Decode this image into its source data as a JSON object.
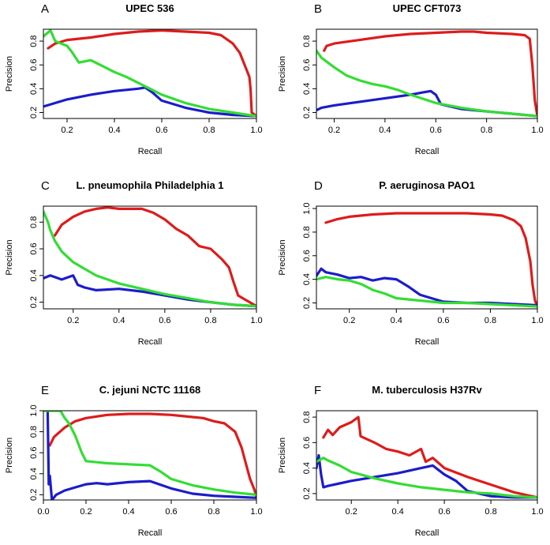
{
  "chart_data": [
    {
      "type": "line",
      "letter": "A",
      "title": "UPEC 536",
      "xlabel": "Recall",
      "ylabel": "Precision",
      "xlim": [
        0.1,
        1.0
      ],
      "ylim": [
        0.15,
        0.9
      ],
      "xticks": [
        "0.2",
        "0.4",
        "0.6",
        "0.8",
        "1.0"
      ],
      "xtick_values": [
        0.2,
        0.4,
        0.6,
        0.8,
        1.0
      ],
      "yticks": [
        "0.2",
        "0.4",
        "0.6",
        "0.8"
      ],
      "ytick_values": [
        0.2,
        0.4,
        0.6,
        0.8
      ],
      "series": [
        {
          "name": "red",
          "color": "#dd1c1c",
          "x": [
            0.12,
            0.15,
            0.2,
            0.3,
            0.4,
            0.5,
            0.6,
            0.7,
            0.8,
            0.85,
            0.9,
            0.93,
            0.95,
            0.96,
            0.97,
            0.975,
            0.98,
            1.0
          ],
          "y": [
            0.74,
            0.78,
            0.81,
            0.83,
            0.86,
            0.88,
            0.89,
            0.88,
            0.87,
            0.85,
            0.78,
            0.7,
            0.6,
            0.55,
            0.5,
            0.4,
            0.2,
            0.17
          ]
        },
        {
          "name": "blue",
          "color": "#1c1ccc",
          "x": [
            0.1,
            0.15,
            0.2,
            0.3,
            0.4,
            0.5,
            0.53,
            0.56,
            0.6,
            0.7,
            0.8,
            0.9,
            1.0
          ],
          "y": [
            0.25,
            0.28,
            0.31,
            0.35,
            0.38,
            0.4,
            0.41,
            0.37,
            0.3,
            0.24,
            0.2,
            0.18,
            0.17
          ]
        },
        {
          "name": "green",
          "color": "#33dd33",
          "x": [
            0.1,
            0.13,
            0.15,
            0.2,
            0.22,
            0.25,
            0.3,
            0.35,
            0.4,
            0.45,
            0.5,
            0.55,
            0.6,
            0.7,
            0.8,
            0.9,
            1.0
          ],
          "y": [
            0.84,
            0.89,
            0.8,
            0.76,
            0.71,
            0.62,
            0.64,
            0.59,
            0.54,
            0.5,
            0.45,
            0.4,
            0.35,
            0.28,
            0.23,
            0.2,
            0.17
          ]
        }
      ]
    },
    {
      "type": "line",
      "letter": "B",
      "title": "UPEC CFT073",
      "xlabel": "Recall",
      "ylabel": "Precision",
      "xlim": [
        0.13,
        1.0
      ],
      "ylim": [
        0.15,
        0.9
      ],
      "xticks": [
        "0.2",
        "0.4",
        "0.6",
        "0.8",
        "1.0"
      ],
      "xtick_values": [
        0.2,
        0.4,
        0.6,
        0.8,
        1.0
      ],
      "yticks": [
        "0.2",
        "0.4",
        "0.6",
        "0.8"
      ],
      "ytick_values": [
        0.2,
        0.4,
        0.6,
        0.8
      ],
      "series": [
        {
          "name": "red",
          "color": "#dd1c1c",
          "x": [
            0.16,
            0.17,
            0.2,
            0.3,
            0.4,
            0.5,
            0.6,
            0.7,
            0.75,
            0.8,
            0.9,
            0.95,
            0.97,
            0.98,
            0.99,
            1.0
          ],
          "y": [
            0.72,
            0.76,
            0.78,
            0.81,
            0.84,
            0.86,
            0.87,
            0.88,
            0.88,
            0.87,
            0.86,
            0.85,
            0.82,
            0.6,
            0.3,
            0.17
          ]
        },
        {
          "name": "blue",
          "color": "#1c1ccc",
          "x": [
            0.13,
            0.15,
            0.2,
            0.3,
            0.4,
            0.5,
            0.55,
            0.58,
            0.6,
            0.62,
            0.7,
            0.8,
            0.9,
            1.0
          ],
          "y": [
            0.22,
            0.24,
            0.26,
            0.29,
            0.32,
            0.35,
            0.37,
            0.38,
            0.35,
            0.27,
            0.23,
            0.21,
            0.19,
            0.17
          ]
        },
        {
          "name": "green",
          "color": "#33dd33",
          "x": [
            0.13,
            0.15,
            0.2,
            0.25,
            0.3,
            0.35,
            0.4,
            0.45,
            0.5,
            0.6,
            0.7,
            0.8,
            0.9,
            1.0
          ],
          "y": [
            0.72,
            0.66,
            0.58,
            0.51,
            0.47,
            0.44,
            0.42,
            0.39,
            0.35,
            0.28,
            0.24,
            0.21,
            0.19,
            0.17
          ]
        }
      ]
    },
    {
      "type": "line",
      "letter": "C",
      "title": "L. pneumophila Philadelphia 1",
      "xlabel": "Recall",
      "ylabel": "Precision",
      "xlim": [
        0.07,
        1.0
      ],
      "ylim": [
        0.15,
        0.92
      ],
      "xticks": [
        "0.2",
        "0.4",
        "0.6",
        "0.8",
        "1.0"
      ],
      "xtick_values": [
        0.2,
        0.4,
        0.6,
        0.8,
        1.0
      ],
      "yticks": [
        "0.2",
        "0.4",
        "0.6",
        "0.8"
      ],
      "ytick_values": [
        0.2,
        0.4,
        0.6,
        0.8
      ],
      "series": [
        {
          "name": "red",
          "color": "#dd1c1c",
          "x": [
            0.12,
            0.15,
            0.2,
            0.25,
            0.3,
            0.35,
            0.4,
            0.5,
            0.55,
            0.6,
            0.65,
            0.7,
            0.75,
            0.8,
            0.85,
            0.88,
            0.9,
            0.92,
            0.95,
            1.0
          ],
          "y": [
            0.7,
            0.78,
            0.84,
            0.88,
            0.9,
            0.91,
            0.9,
            0.9,
            0.87,
            0.82,
            0.75,
            0.7,
            0.62,
            0.6,
            0.52,
            0.46,
            0.35,
            0.25,
            0.22,
            0.17
          ]
        },
        {
          "name": "blue",
          "color": "#1c1ccc",
          "x": [
            0.07,
            0.1,
            0.15,
            0.2,
            0.22,
            0.25,
            0.3,
            0.4,
            0.5,
            0.6,
            0.7,
            0.8,
            0.9,
            1.0
          ],
          "y": [
            0.38,
            0.4,
            0.37,
            0.4,
            0.33,
            0.31,
            0.29,
            0.3,
            0.28,
            0.25,
            0.22,
            0.2,
            0.18,
            0.17
          ]
        },
        {
          "name": "green",
          "color": "#33dd33",
          "x": [
            0.07,
            0.09,
            0.1,
            0.12,
            0.15,
            0.2,
            0.25,
            0.3,
            0.4,
            0.5,
            0.6,
            0.7,
            0.8,
            0.9,
            1.0
          ],
          "y": [
            0.88,
            0.8,
            0.74,
            0.66,
            0.58,
            0.5,
            0.45,
            0.4,
            0.34,
            0.3,
            0.26,
            0.23,
            0.2,
            0.18,
            0.17
          ]
        }
      ]
    },
    {
      "type": "line",
      "letter": "D",
      "title": "P. aeruginosa PAO1",
      "xlabel": "Recall",
      "ylabel": "Precision",
      "xlim": [
        0.06,
        1.0
      ],
      "ylim": [
        0.15,
        1.02
      ],
      "xticks": [
        "0.2",
        "0.4",
        "0.6",
        "0.8",
        "1.0"
      ],
      "xtick_values": [
        0.2,
        0.4,
        0.6,
        0.8,
        1.0
      ],
      "yticks": [
        "0.2",
        "0.4",
        "0.6",
        "0.8",
        "1.0"
      ],
      "ytick_values": [
        0.2,
        0.4,
        0.6,
        0.8,
        1.0
      ],
      "series": [
        {
          "name": "red",
          "color": "#dd1c1c",
          "x": [
            0.1,
            0.15,
            0.2,
            0.3,
            0.4,
            0.5,
            0.6,
            0.7,
            0.8,
            0.85,
            0.9,
            0.93,
            0.95,
            0.97,
            0.98,
            0.99,
            1.0
          ],
          "y": [
            0.88,
            0.91,
            0.93,
            0.95,
            0.96,
            0.96,
            0.96,
            0.96,
            0.95,
            0.94,
            0.9,
            0.85,
            0.75,
            0.55,
            0.35,
            0.22,
            0.17
          ]
        },
        {
          "name": "blue",
          "color": "#1c1ccc",
          "x": [
            0.06,
            0.08,
            0.1,
            0.15,
            0.2,
            0.25,
            0.3,
            0.35,
            0.4,
            0.45,
            0.5,
            0.55,
            0.6,
            0.7,
            0.8,
            0.9,
            1.0
          ],
          "y": [
            0.43,
            0.49,
            0.46,
            0.44,
            0.41,
            0.42,
            0.39,
            0.41,
            0.4,
            0.34,
            0.27,
            0.24,
            0.21,
            0.2,
            0.2,
            0.19,
            0.18
          ]
        },
        {
          "name": "green",
          "color": "#33dd33",
          "x": [
            0.06,
            0.1,
            0.15,
            0.2,
            0.25,
            0.3,
            0.35,
            0.4,
            0.5,
            0.6,
            0.7,
            0.8,
            0.9,
            1.0
          ],
          "y": [
            0.4,
            0.42,
            0.4,
            0.39,
            0.36,
            0.31,
            0.28,
            0.24,
            0.22,
            0.2,
            0.2,
            0.19,
            0.18,
            0.17
          ]
        }
      ]
    },
    {
      "type": "line",
      "letter": "E",
      "title": "C. jejuni NCTC 11168",
      "xlabel": "Recall",
      "ylabel": "Precision",
      "xlim": [
        0.0,
        1.0
      ],
      "ylim": [
        0.15,
        1.0
      ],
      "xticks": [
        "0.0",
        "0.2",
        "0.4",
        "0.6",
        "0.8",
        "1.0"
      ],
      "xtick_values": [
        0.0,
        0.2,
        0.4,
        0.6,
        0.8,
        1.0
      ],
      "yticks": [
        "0.2",
        "0.4",
        "0.6",
        "0.8",
        "1.0"
      ],
      "ytick_values": [
        0.2,
        0.4,
        0.6,
        0.8,
        1.0
      ],
      "series": [
        {
          "name": "red",
          "color": "#dd1c1c",
          "x": [
            0.03,
            0.05,
            0.1,
            0.15,
            0.2,
            0.3,
            0.4,
            0.5,
            0.6,
            0.7,
            0.75,
            0.8,
            0.85,
            0.9,
            0.93,
            0.95,
            0.97,
            0.99,
            1.0
          ],
          "y": [
            0.67,
            0.75,
            0.84,
            0.9,
            0.93,
            0.96,
            0.97,
            0.97,
            0.96,
            0.94,
            0.93,
            0.9,
            0.88,
            0.8,
            0.65,
            0.5,
            0.35,
            0.25,
            0.18
          ]
        },
        {
          "name": "blue",
          "color": "#1c1ccc",
          "x": [
            0.02,
            0.025,
            0.03,
            0.04,
            0.06,
            0.1,
            0.15,
            0.2,
            0.25,
            0.3,
            0.4,
            0.5,
            0.6,
            0.7,
            0.8,
            0.9,
            1.0
          ],
          "y": [
            1.0,
            0.3,
            0.38,
            0.15,
            0.2,
            0.24,
            0.27,
            0.3,
            0.31,
            0.3,
            0.32,
            0.33,
            0.26,
            0.21,
            0.19,
            0.18,
            0.17
          ]
        },
        {
          "name": "green",
          "color": "#33dd33",
          "x": [
            0.0,
            0.08,
            0.1,
            0.12,
            0.15,
            0.18,
            0.2,
            0.3,
            0.4,
            0.5,
            0.55,
            0.6,
            0.7,
            0.8,
            0.9,
            1.0
          ],
          "y": [
            1.0,
            1.0,
            0.93,
            0.88,
            0.76,
            0.6,
            0.52,
            0.5,
            0.49,
            0.48,
            0.42,
            0.35,
            0.29,
            0.25,
            0.22,
            0.2
          ]
        }
      ]
    },
    {
      "type": "line",
      "letter": "F",
      "title": "M. tuberculosis H37Rv",
      "xlabel": "Recall",
      "ylabel": "Precision",
      "xlim": [
        0.05,
        1.0
      ],
      "ylim": [
        0.15,
        0.85
      ],
      "xticks": [
        "0.2",
        "0.4",
        "0.6",
        "0.8",
        "1.0"
      ],
      "xtick_values": [
        0.2,
        0.4,
        0.6,
        0.8,
        1.0
      ],
      "yticks": [
        "0.2",
        "0.4",
        "0.6",
        "0.8"
      ],
      "ytick_values": [
        0.2,
        0.4,
        0.6,
        0.8
      ],
      "series": [
        {
          "name": "red",
          "color": "#dd1c1c",
          "x": [
            0.08,
            0.1,
            0.12,
            0.15,
            0.2,
            0.23,
            0.24,
            0.3,
            0.35,
            0.4,
            0.45,
            0.5,
            0.52,
            0.55,
            0.6,
            0.7,
            0.8,
            0.9,
            1.0
          ],
          "y": [
            0.64,
            0.7,
            0.66,
            0.72,
            0.76,
            0.8,
            0.65,
            0.6,
            0.55,
            0.53,
            0.5,
            0.55,
            0.45,
            0.48,
            0.4,
            0.33,
            0.27,
            0.21,
            0.17
          ]
        },
        {
          "name": "blue",
          "color": "#1c1ccc",
          "x": [
            0.05,
            0.06,
            0.07,
            0.08,
            0.1,
            0.15,
            0.2,
            0.3,
            0.4,
            0.5,
            0.55,
            0.6,
            0.65,
            0.7,
            0.8,
            0.9,
            1.0
          ],
          "y": [
            0.4,
            0.5,
            0.35,
            0.25,
            0.26,
            0.28,
            0.3,
            0.33,
            0.36,
            0.4,
            0.42,
            0.35,
            0.3,
            0.22,
            0.18,
            0.17,
            0.17
          ]
        },
        {
          "name": "green",
          "color": "#33dd33",
          "x": [
            0.05,
            0.08,
            0.1,
            0.15,
            0.2,
            0.3,
            0.4,
            0.5,
            0.6,
            0.7,
            0.8,
            0.9,
            1.0
          ],
          "y": [
            0.45,
            0.48,
            0.46,
            0.42,
            0.37,
            0.32,
            0.28,
            0.25,
            0.23,
            0.21,
            0.2,
            0.18,
            0.17
          ]
        }
      ]
    }
  ]
}
